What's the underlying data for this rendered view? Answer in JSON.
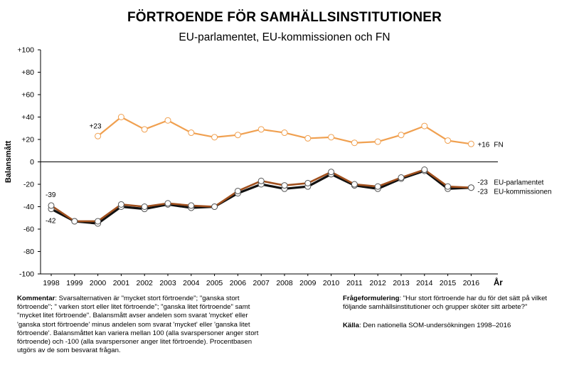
{
  "chart_data": {
    "type": "line",
    "title": "FÖRTROENDE FÖR SAMHÄLLSINSTITUTIONER",
    "subtitle": "EU-parlamentet, EU-kommissionen och FN",
    "xlabel": "År",
    "ylabel": "Balansmått",
    "ylim": [
      -100,
      100
    ],
    "y_ticks": [
      "+100",
      "+80",
      "+60",
      "+40",
      "+20",
      "0",
      "-20",
      "-40",
      "-60",
      "-80",
      "-100"
    ],
    "x": [
      "1998",
      "1999",
      "2000",
      "2001",
      "2002",
      "2003",
      "2004",
      "2005",
      "2006",
      "2007",
      "2008",
      "2009",
      "2010",
      "2011",
      "2012",
      "2013",
      "2014",
      "2015",
      "2016"
    ],
    "grid": false,
    "series": [
      {
        "name": "FN",
        "color": "#f0a050",
        "x": [
          "2000",
          "2001",
          "2002",
          "2003",
          "2004",
          "2005",
          "2006",
          "2007",
          "2008",
          "2009",
          "2010",
          "2011",
          "2012",
          "2013",
          "2014",
          "2015",
          "2016"
        ],
        "values": [
          23,
          40,
          29,
          37,
          26,
          22,
          24,
          29,
          26,
          21,
          22,
          17,
          18,
          24,
          32,
          19,
          16
        ],
        "start_label": "+23",
        "end_label": "+16",
        "legend_label": "FN"
      },
      {
        "name": "EU-parlamentet",
        "color": "#a0501e",
        "x": [
          "1998",
          "1999",
          "2000",
          "2001",
          "2002",
          "2003",
          "2004",
          "2005",
          "2006",
          "2007",
          "2008",
          "2009",
          "2010",
          "2011",
          "2012",
          "2013",
          "2014",
          "2015",
          "2016"
        ],
        "values": [
          -39,
          -53,
          -53,
          -38,
          -40,
          -37,
          -39,
          -40,
          -26,
          -17,
          -21,
          -19,
          -9,
          -20,
          -22,
          -14,
          -7,
          -22,
          -23
        ],
        "start_label": "-39",
        "end_label": "-23",
        "legend_label": "EU-parlamentet"
      },
      {
        "name": "EU-kommissionen",
        "color": "#111111",
        "x": [
          "1998",
          "1999",
          "2000",
          "2001",
          "2002",
          "2003",
          "2004",
          "2005",
          "2006",
          "2007",
          "2008",
          "2009",
          "2010",
          "2011",
          "2012",
          "2013",
          "2014",
          "2015",
          "2016"
        ],
        "values": [
          -42,
          -53,
          -55,
          -40,
          -42,
          -38,
          -41,
          -40,
          -28,
          -20,
          -24,
          -22,
          -11,
          -21,
          -24,
          -15,
          -8,
          -24,
          -23
        ],
        "start_label": "-42",
        "end_label": "-23",
        "legend_label": "EU-kommissionen"
      }
    ]
  },
  "notes": {
    "comment_label": "Kommentar",
    "comment_text": ": Svarsalternativen är  \"mycket stort förtroende\"; \"ganska stort förtroende\"; \" varken stort eller litet förtroende\"; \"ganska litet förtroende\" samt \"mycket litet förtroende\". Balansmått  avser andelen som svarat 'mycket' eller 'ganska stort förtroende' minus andelen som svarat 'mycket' eller 'ganska litet förtroende'. Balansmåttet kan variera mellan 100 (alla svarspersoner anger stort förtroende) och -100 (alla svarspersoner anger litet förtroende). Procentbasen utgörs av de som besvarat frågan.",
    "question_label": "Frågeformulering",
    "question_text": ": \"Hur stort förtroende har du för det sätt på vilket följande samhällsinstitutioner och grupper sköter sitt arbete?\"",
    "source_label": "Källa",
    "source_text": ": Den nationella SOM-undersökningen 1998–2016"
  }
}
